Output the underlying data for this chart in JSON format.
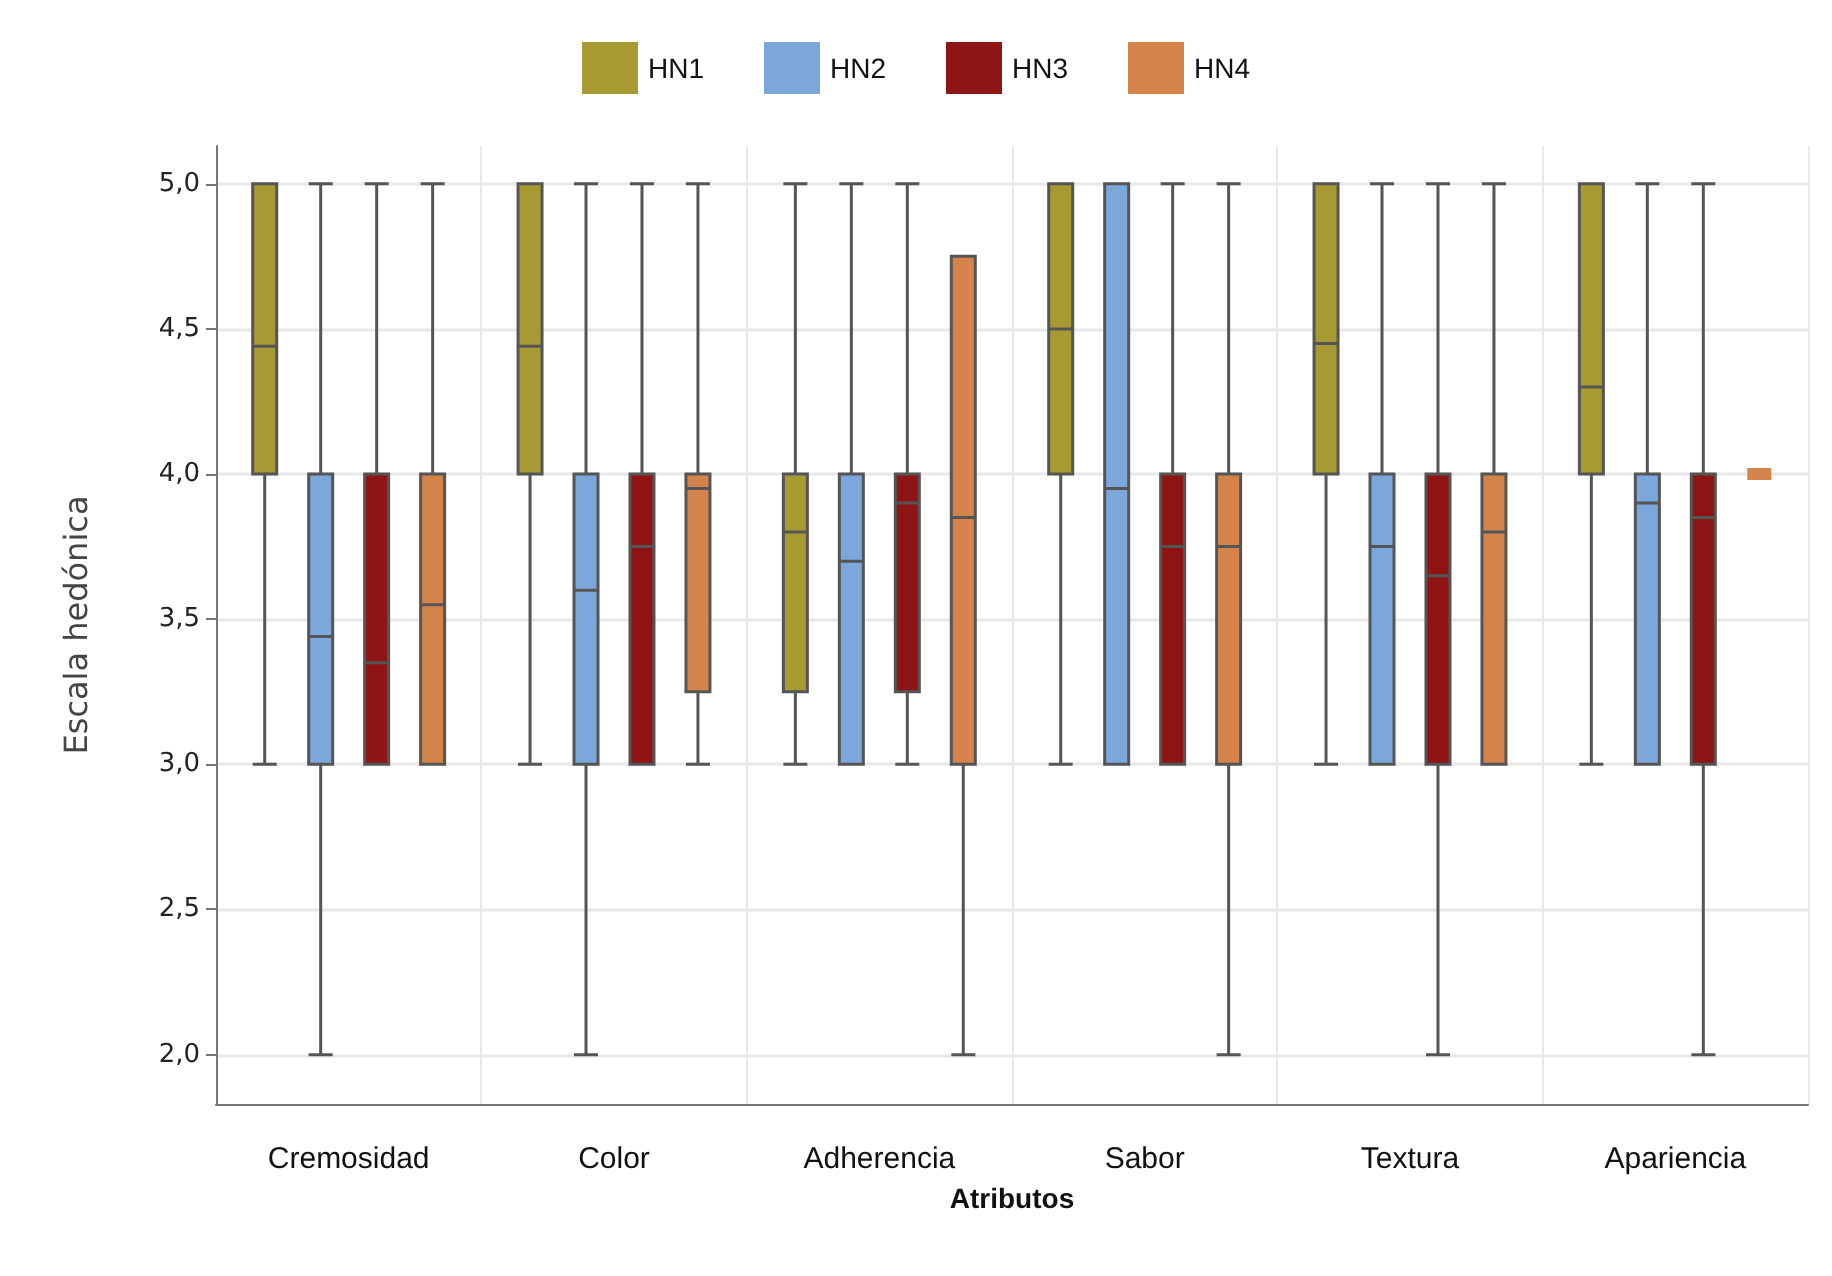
{
  "chart_data": {
    "type": "box",
    "xlabel": "Atributos",
    "ylabel": "Escala hedónica",
    "categories": [
      "Cremosidad",
      "Color",
      "Adherencia",
      "Sabor",
      "Textura",
      "Apariencia"
    ],
    "ylim": [
      1.83,
      5.13
    ],
    "yticks": [
      {
        "value": 2,
        "label": "2,0"
      },
      {
        "value": 2.5,
        "label": "2,5"
      },
      {
        "value": 3,
        "label": "3,0"
      },
      {
        "value": 3.5,
        "label": "3,5"
      },
      {
        "value": 4,
        "label": "4,0"
      },
      {
        "value": 4.5,
        "label": "4,5"
      },
      {
        "value": 5,
        "label": "5,0"
      }
    ],
    "grid": true,
    "legend": "top",
    "series": [
      {
        "name": "HN1",
        "color": "#a89a32",
        "boxes": [
          {
            "low": 3,
            "q1": 4,
            "median": 4.44,
            "q3": 5,
            "high": 5
          },
          {
            "low": 3,
            "q1": 4,
            "median": 4.44,
            "q3": 5,
            "high": 5
          },
          {
            "low": 3,
            "q1": 3.25,
            "median": 3.8,
            "q3": 4,
            "high": 5
          },
          {
            "low": 3,
            "q1": 4,
            "median": 4.5,
            "q3": 5,
            "high": 5
          },
          {
            "low": 3,
            "q1": 4,
            "median": 4.45,
            "q3": 5,
            "high": 5
          },
          {
            "low": 3,
            "q1": 4,
            "median": 4.3,
            "q3": 5,
            "high": 5
          }
        ]
      },
      {
        "name": "HN2",
        "color": "#7ba7db",
        "boxes": [
          {
            "low": 2,
            "q1": 3,
            "median": 3.44,
            "q3": 4,
            "high": 5
          },
          {
            "low": 2,
            "q1": 3,
            "median": 3.6,
            "q3": 4,
            "high": 5
          },
          {
            "low": 3,
            "q1": 3,
            "median": 3.7,
            "q3": 4,
            "high": 5
          },
          {
            "low": 3,
            "q1": 3,
            "median": 3.95,
            "q3": 5,
            "high": 5
          },
          {
            "low": 3,
            "q1": 3,
            "median": 3.75,
            "q3": 4,
            "high": 5
          },
          {
            "low": 3,
            "q1": 3,
            "median": 3.9,
            "q3": 4,
            "high": 5
          }
        ]
      },
      {
        "name": "HN3",
        "color": "#8f1414",
        "boxes": [
          {
            "low": 3,
            "q1": 3,
            "median": 3.35,
            "q3": 4,
            "high": 5
          },
          {
            "low": 3,
            "q1": 3,
            "median": 3.75,
            "q3": 4,
            "high": 5
          },
          {
            "low": 3,
            "q1": 3.25,
            "median": 3.9,
            "q3": 4,
            "high": 5
          },
          {
            "low": 3,
            "q1": 3,
            "median": 3.75,
            "q3": 4,
            "high": 5
          },
          {
            "low": 2,
            "q1": 3,
            "median": 3.65,
            "q3": 4,
            "high": 5
          },
          {
            "low": 2,
            "q1": 3,
            "median": 3.85,
            "q3": 4,
            "high": 5
          }
        ]
      },
      {
        "name": "HN4",
        "color": "#d4844a",
        "boxes": [
          {
            "low": 3,
            "q1": 3,
            "median": 3.55,
            "q3": 4,
            "high": 5
          },
          {
            "low": 3,
            "q1": 3.25,
            "median": 3.95,
            "q3": 4,
            "high": 5
          },
          {
            "low": 2,
            "q1": 3,
            "median": 3.85,
            "q3": 4.75,
            "high": 4.75
          },
          {
            "low": 2,
            "q1": 3,
            "median": 3.75,
            "q3": 4,
            "high": 5
          },
          {
            "low": 3,
            "q1": 3,
            "median": 3.8,
            "q3": 4,
            "high": 5
          },
          {
            "low": 4,
            "q1": 4,
            "median": 4,
            "q3": 4,
            "high": 4
          }
        ]
      }
    ]
  }
}
